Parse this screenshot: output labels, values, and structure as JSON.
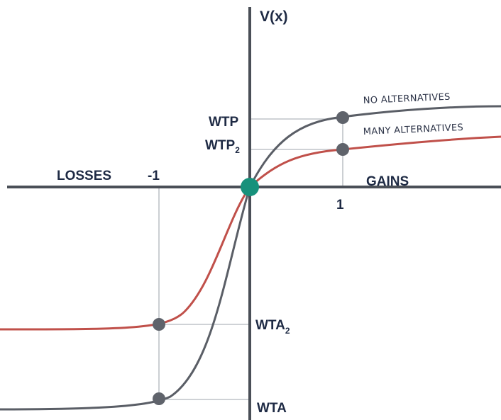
{
  "axes": {
    "y_label": "V(x)",
    "losses_label": "LOSSES",
    "gains_label": "GAINS",
    "neg_tick": "-1",
    "pos_tick": "1"
  },
  "labels": {
    "wtp": "WTP",
    "wtp2_main": "WTP",
    "wtp2_sub": "2",
    "wta2_main": "WTA",
    "wta2_sub": "2",
    "wta": "WTA"
  },
  "curves": {
    "no_alternatives": {
      "label": "NO ALTERNATIVES",
      "color": "#5a5e66"
    },
    "many_alternatives": {
      "label": "MANY ALTERNATIVES",
      "color": "#c0504a"
    }
  },
  "colors": {
    "axis": "#4a4f57",
    "guide": "#bfc3c8",
    "point": "#5f636b",
    "origin": "#17917b",
    "text": "#1e2a44"
  }
}
